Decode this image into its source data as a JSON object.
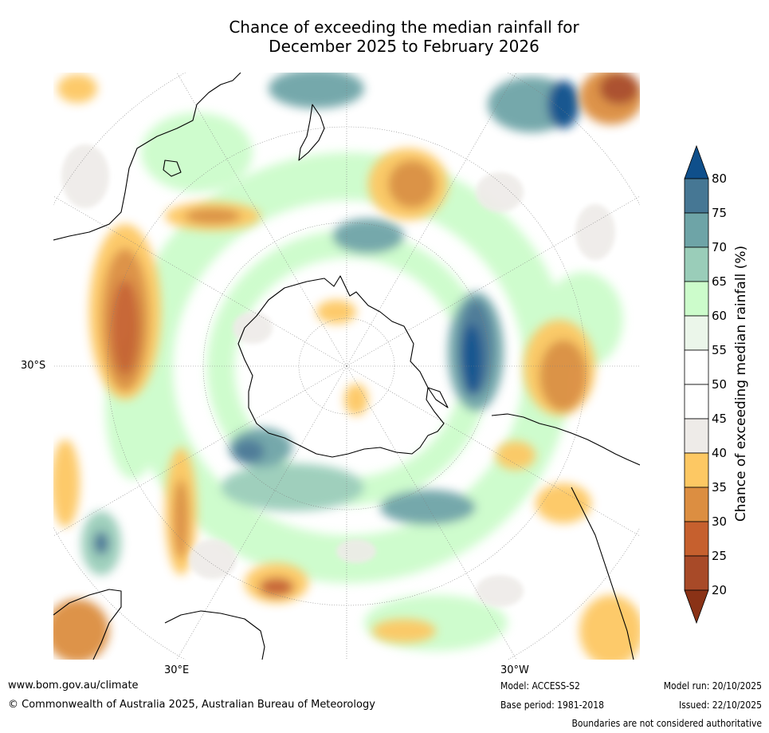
{
  "title_line1": "Chance of exceeding the median rainfall for",
  "title_line2": "December 2025 to February 2026",
  "axes": {
    "lat_label": "30°S",
    "lon_labels": [
      "30°E",
      "30°W"
    ]
  },
  "legend": {
    "label": "Chance of exceeding median rainfall (%)",
    "ticks": [
      "80",
      "75",
      "70",
      "65",
      "60",
      "55",
      "50",
      "45",
      "40",
      "35",
      "30",
      "25",
      "20"
    ],
    "colors": [
      "#0f4f8b",
      "#467794",
      "#6ea4a7",
      "#9acdb9",
      "#ccfccb",
      "#ebf6ea",
      "#ffffff",
      "#ffffff",
      "#eeebe8",
      "#fdc863",
      "#dc8e41",
      "#c6602e",
      "#a84a28",
      "#8a3216"
    ]
  },
  "colors": {
    "ocean_base": "#ffffff",
    "coast": "#000000"
  },
  "footer": {
    "website": "www.bom.gov.au/climate",
    "copyright": "© Commonwealth of Australia 2025, Australian Bureau of Meteorology",
    "model": "Model: ACCESS-S2",
    "base_period": "Base period: 1981-2018",
    "model_run": "Model run: 20/10/2025",
    "issued": "Issued: 22/10/2025",
    "disclaimer": "Boundaries are not considered authoritative"
  }
}
